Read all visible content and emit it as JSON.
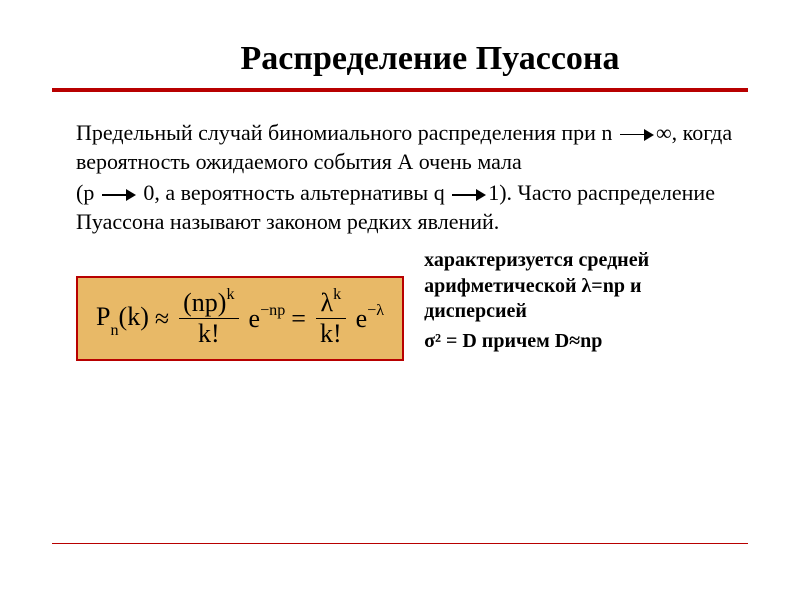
{
  "title": "Распределение Пуассона",
  "body": {
    "p1a": "Предельный  случай биномиального распределения при n",
    "p1b": "∞, когда вероятность ожидаемого события А очень мала",
    "p2a": "(p",
    "p2b": "0, а вероятность альтернативы q",
    "p2c": "1). Часто распределение Пуассона называют законом редких явлений."
  },
  "formula": {
    "lhs_P": "P",
    "lhs_n": "n",
    "lhs_k": "(k)",
    "approx": "≈",
    "f1_num_base": "(np)",
    "f1_num_exp": "k",
    "f1_den": "k!",
    "e": "e",
    "e_exp1": "−np",
    "eq": "=",
    "f2_num_base": "λ",
    "f2_num_exp": "k",
    "f2_den": "k!",
    "e_exp2": "−λ"
  },
  "side": {
    "l1": "характеризуется средней арифметической λ=np и дисперсией",
    "l2": "σ² = D причем D≈np"
  },
  "colors": {
    "accent": "#b80000",
    "box_bg": "#e8b967",
    "text": "#000000",
    "bg": "#ffffff"
  }
}
